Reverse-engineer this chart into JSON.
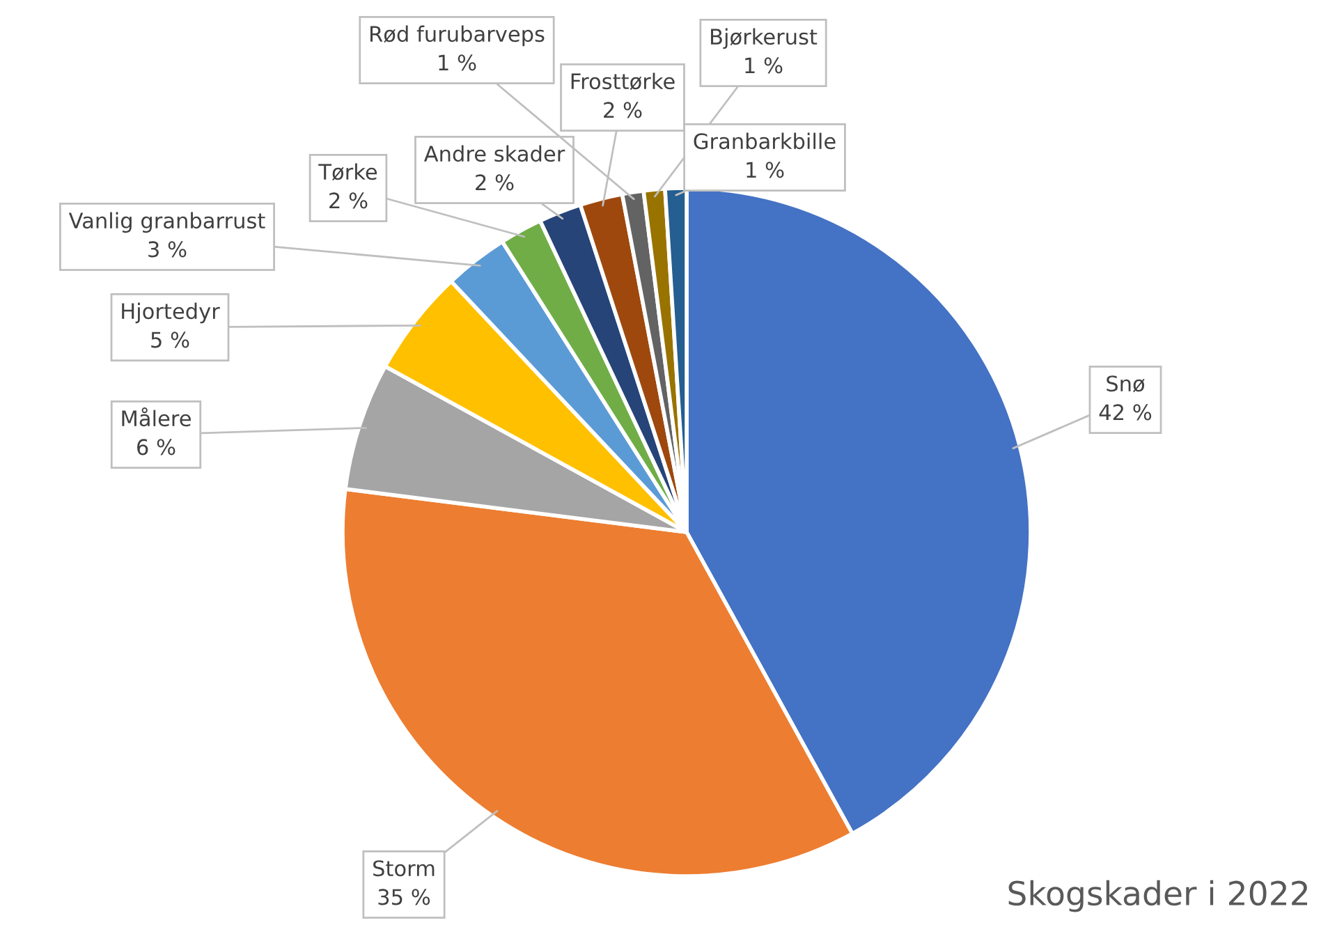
{
  "chart_data": {
    "type": "pie",
    "title": "Skogskader i 2022",
    "categories": [
      "Snø",
      "Storm",
      "Målere",
      "Hjortedyr",
      "Vanlig granbarrust",
      "Tørke",
      "Andre skader",
      "Frosttørke",
      "Rød furubarveps",
      "Bjørkerust",
      "Granbarkbille"
    ],
    "values": [
      42,
      35,
      6,
      5,
      3,
      2,
      2,
      2,
      1,
      1,
      1
    ],
    "colors": [
      "#4472c4",
      "#ed7d31",
      "#a5a5a5",
      "#ffc000",
      "#5b9bd5",
      "#70ad47",
      "#264478",
      "#9e480e",
      "#636363",
      "#997300",
      "#255e91"
    ],
    "value_labels": [
      "42 %",
      "35 %",
      "6 %",
      "5 %",
      "3 %",
      "2 %",
      "2 %",
      "2 %",
      "1 %",
      "1 %",
      "1 %"
    ]
  }
}
